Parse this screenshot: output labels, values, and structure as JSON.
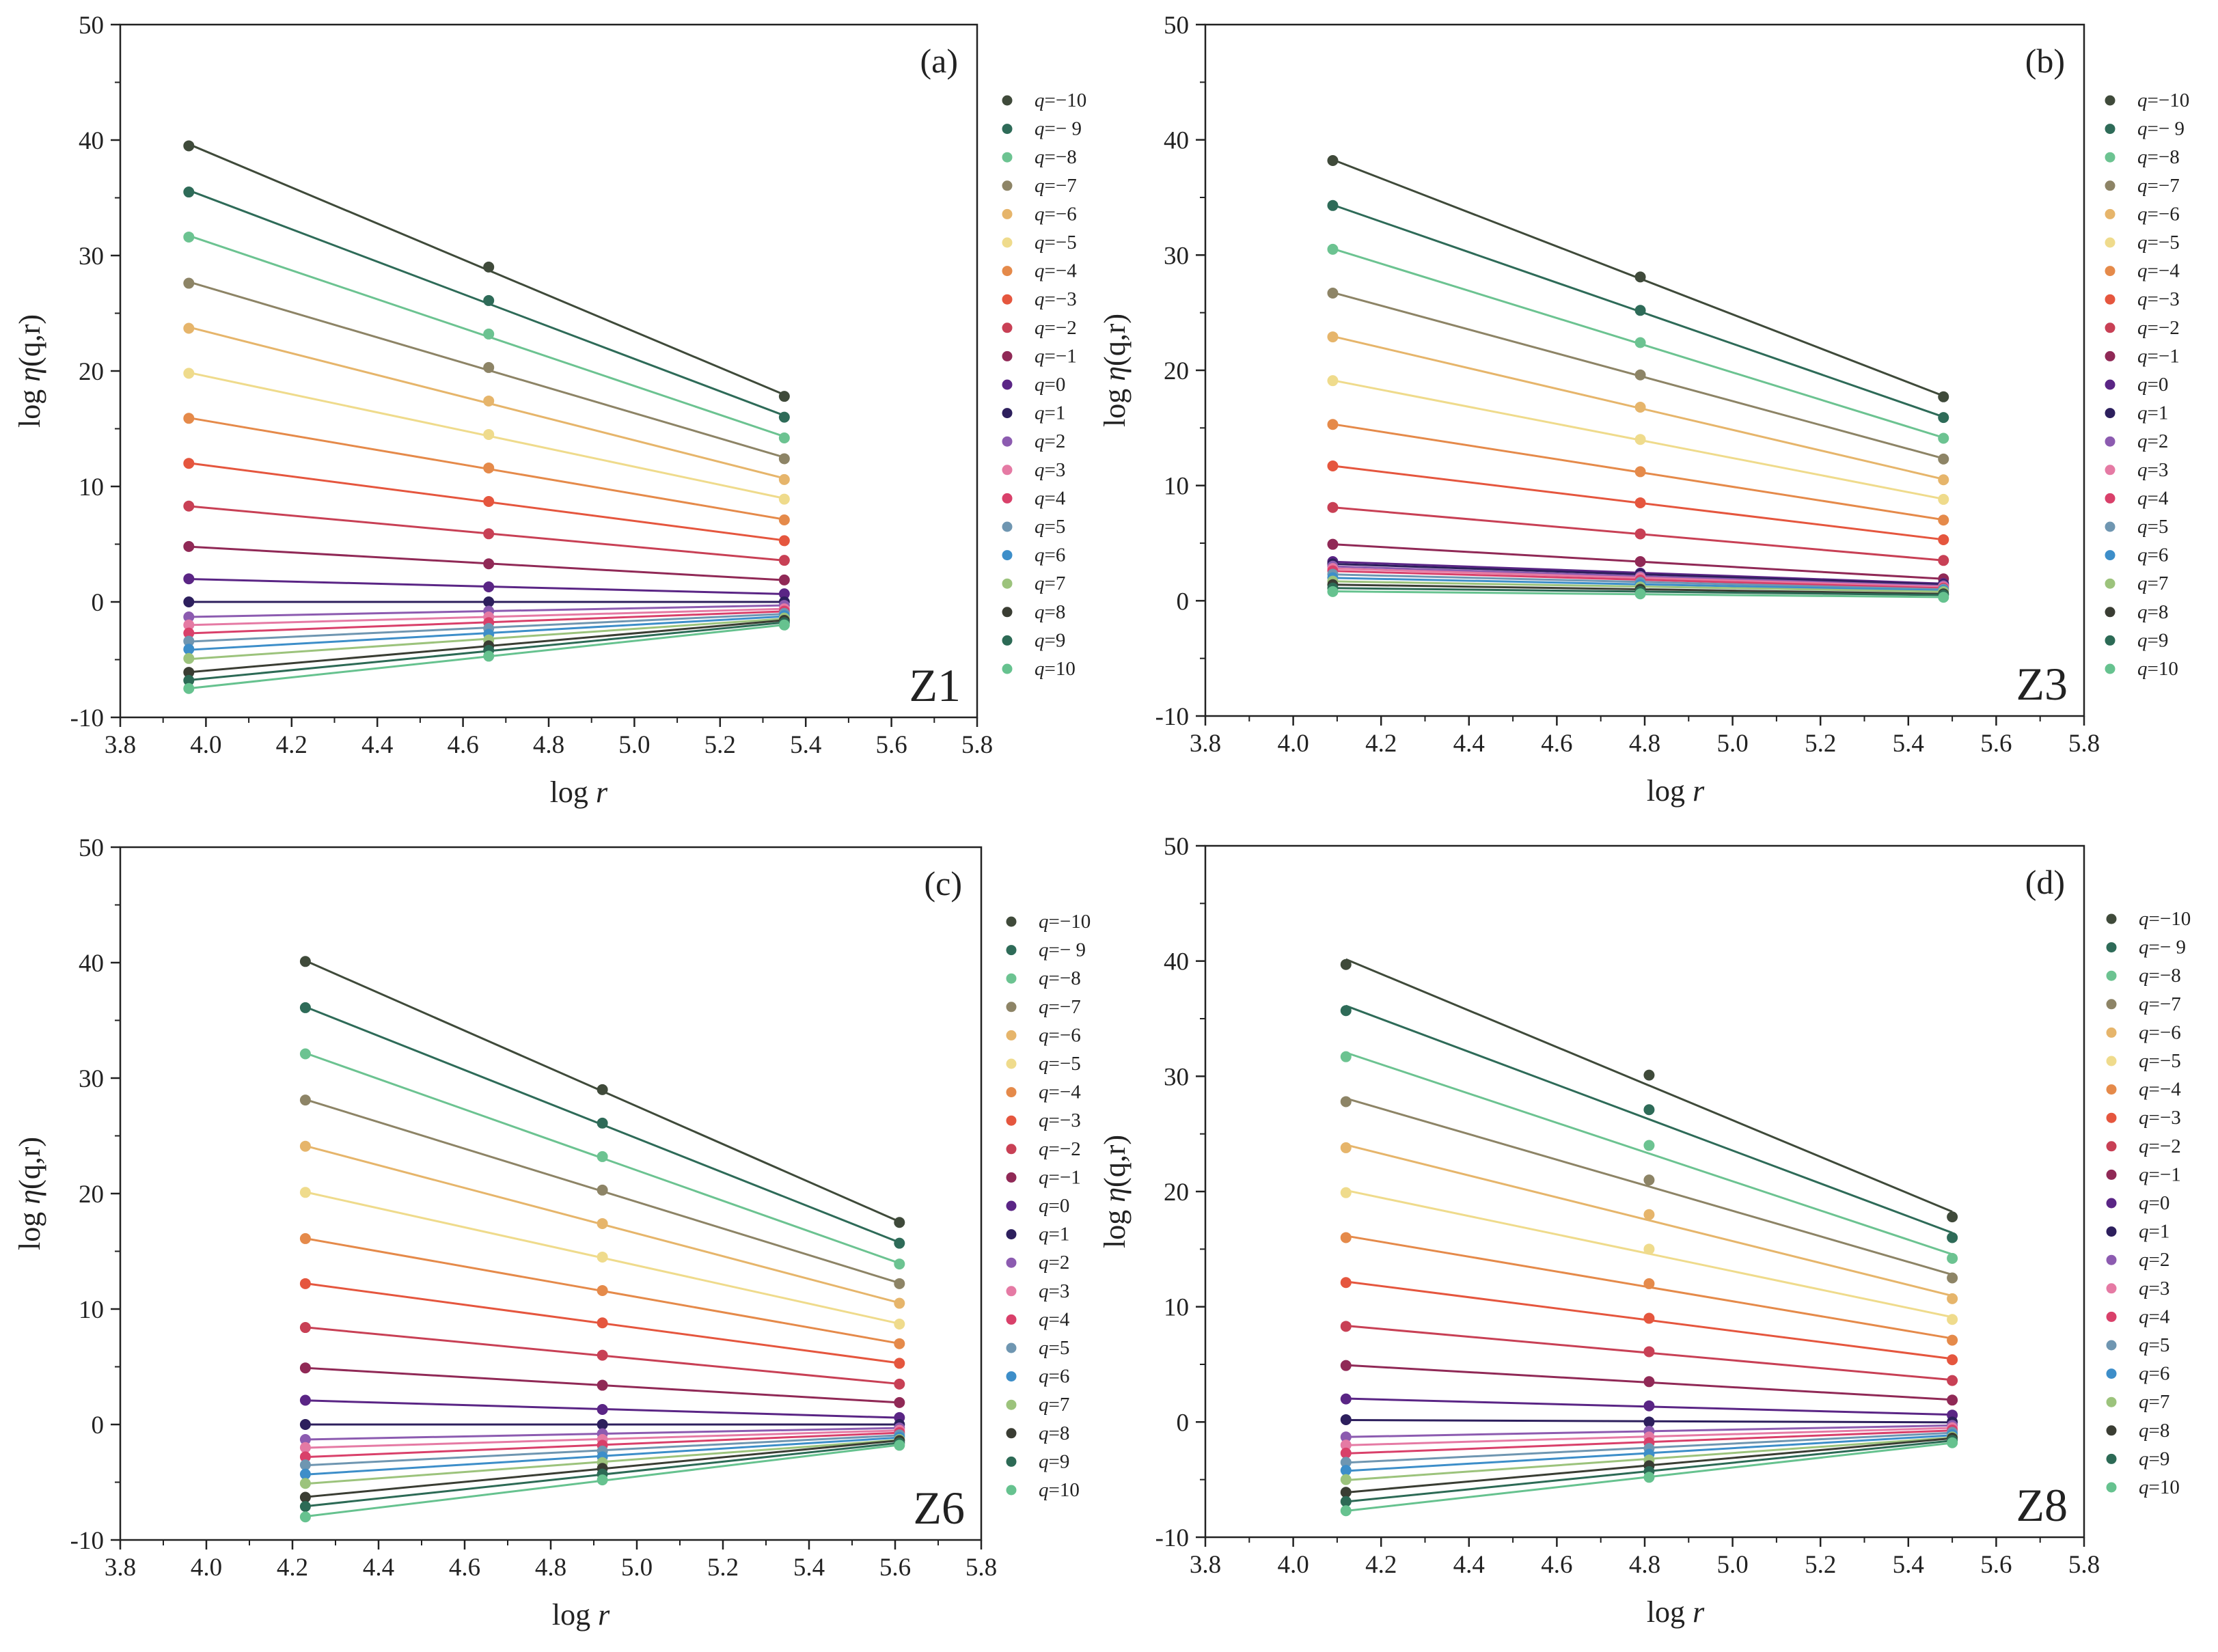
{
  "figure": {
    "description_free": true
  },
  "legend_q_labels": [
    "q=−10",
    "q=− 9",
    "q=−8",
    "q=−7",
    "q=−6",
    "q=−5",
    "q=−4",
    "q=−3",
    "q=−2",
    "q=−1",
    "q=0",
    "q=1",
    "q=2",
    "q=3",
    "q=4",
    "q=5",
    "q=6",
    "q=7",
    "q=8",
    "q=9",
    "q=10"
  ],
  "series_colors": [
    "#3f4a3a",
    "#2e6b58",
    "#6cc391",
    "#8d8466",
    "#e6b56b",
    "#efdb8c",
    "#e58a4a",
    "#e5563e",
    "#c84055",
    "#902956",
    "#5a2585",
    "#2d1f5d",
    "#8c5bb0",
    "#e57aa4",
    "#d9406a",
    "#6f96b1",
    "#3d8ec9",
    "#9cc37c",
    "#3a3d33",
    "#2c6a55",
    "#66c28f"
  ],
  "chart_data": [
    {
      "type": "scatter",
      "panel": "(a)",
      "zone": "Z1",
      "xlabel": "log r",
      "ylabel": "log η(q,r)",
      "xlim": [
        3.8,
        5.8
      ],
      "ylim": [
        -10,
        50
      ],
      "xticks": [
        "3.8",
        "4.0",
        "4.2",
        "4.4",
        "4.6",
        "4.8",
        "5.0",
        "5.2",
        "5.4",
        "5.6",
        "5.8"
      ],
      "yticks": [
        "-10",
        "0",
        "10",
        "20",
        "30",
        "40",
        "50"
      ],
      "x": [
        3.96,
        4.66,
        5.35
      ],
      "series": [
        {
          "name": "q=−10",
          "values": [
            39.5,
            29.0,
            17.8
          ]
        },
        {
          "name": "q=− 9",
          "values": [
            35.5,
            26.1,
            16.0
          ]
        },
        {
          "name": "q=−8",
          "values": [
            31.6,
            23.2,
            14.2
          ]
        },
        {
          "name": "q=−7",
          "values": [
            27.6,
            20.3,
            12.4
          ]
        },
        {
          "name": "q=−6",
          "values": [
            23.7,
            17.4,
            10.6
          ]
        },
        {
          "name": "q=−5",
          "values": [
            19.8,
            14.5,
            8.9
          ]
        },
        {
          "name": "q=−4",
          "values": [
            15.9,
            11.6,
            7.1
          ]
        },
        {
          "name": "q=−3",
          "values": [
            12.0,
            8.7,
            5.3
          ]
        },
        {
          "name": "q=−2",
          "values": [
            8.3,
            5.9,
            3.6
          ]
        },
        {
          "name": "q=−1",
          "values": [
            4.8,
            3.3,
            1.9
          ]
        },
        {
          "name": "q=0",
          "values": [
            2.0,
            1.3,
            0.7
          ]
        },
        {
          "name": "q=1",
          "values": [
            0.0,
            0.0,
            0.0
          ]
        },
        {
          "name": "q=2",
          "values": [
            -1.3,
            -0.8,
            -0.3
          ]
        },
        {
          "name": "q=3",
          "values": [
            -2.0,
            -1.3,
            -0.6
          ]
        },
        {
          "name": "q=4",
          "values": [
            -2.7,
            -1.8,
            -0.8
          ]
        },
        {
          "name": "q=5",
          "values": [
            -3.4,
            -2.3,
            -1.0
          ]
        },
        {
          "name": "q=6",
          "values": [
            -4.1,
            -2.8,
            -1.2
          ]
        },
        {
          "name": "q=7",
          "values": [
            -4.9,
            -3.3,
            -1.4
          ]
        },
        {
          "name": "q=8",
          "values": [
            -6.1,
            -3.8,
            -1.6
          ]
        },
        {
          "name": "q=9",
          "values": [
            -6.8,
            -4.2,
            -1.8
          ]
        },
        {
          "name": "q=10",
          "values": [
            -7.5,
            -4.7,
            -2.0
          ]
        }
      ]
    },
    {
      "type": "scatter",
      "panel": "(b)",
      "zone": "Z3",
      "xlabel": "log r",
      "ylabel": "log η(q,r)",
      "xlim": [
        3.8,
        5.8
      ],
      "ylim": [
        -10,
        50
      ],
      "xticks": [
        "3.8",
        "4.0",
        "4.2",
        "4.4",
        "4.6",
        "4.8",
        "5.0",
        "5.2",
        "5.4",
        "5.6",
        "5.8"
      ],
      "yticks": [
        "-10",
        "0",
        "10",
        "20",
        "30",
        "40",
        "50"
      ],
      "x": [
        4.09,
        4.79,
        5.48
      ],
      "series": [
        {
          "name": "q=−10",
          "values": [
            38.2,
            28.1,
            17.7
          ]
        },
        {
          "name": "q=− 9",
          "values": [
            34.3,
            25.2,
            15.9
          ]
        },
        {
          "name": "q=−8",
          "values": [
            30.5,
            22.4,
            14.1
          ]
        },
        {
          "name": "q=−7",
          "values": [
            26.7,
            19.6,
            12.3
          ]
        },
        {
          "name": "q=−6",
          "values": [
            22.9,
            16.8,
            10.5
          ]
        },
        {
          "name": "q=−5",
          "values": [
            19.1,
            14.0,
            8.8
          ]
        },
        {
          "name": "q=−4",
          "values": [
            15.3,
            11.2,
            7.0
          ]
        },
        {
          "name": "q=−3",
          "values": [
            11.7,
            8.5,
            5.3
          ]
        },
        {
          "name": "q=−2",
          "values": [
            8.1,
            5.8,
            3.5
          ]
        },
        {
          "name": "q=−1",
          "values": [
            4.9,
            3.4,
            1.9
          ]
        },
        {
          "name": "q=0",
          "values": [
            3.4,
            2.4,
            1.5
          ]
        },
        {
          "name": "q=1",
          "values": [
            3.2,
            2.3,
            1.4
          ]
        },
        {
          "name": "q=2",
          "values": [
            3.0,
            2.1,
            1.3
          ]
        },
        {
          "name": "q=3",
          "values": [
            2.8,
            2.0,
            1.2
          ]
        },
        {
          "name": "q=4",
          "values": [
            2.6,
            1.8,
            1.1
          ]
        },
        {
          "name": "q=5",
          "values": [
            2.3,
            1.6,
            1.0
          ]
        },
        {
          "name": "q=6",
          "values": [
            2.0,
            1.4,
            0.9
          ]
        },
        {
          "name": "q=7",
          "values": [
            1.7,
            1.2,
            0.8
          ]
        },
        {
          "name": "q=8",
          "values": [
            1.4,
            1.0,
            0.6
          ]
        },
        {
          "name": "q=9",
          "values": [
            1.1,
            0.8,
            0.5
          ]
        },
        {
          "name": "q=10",
          "values": [
            0.8,
            0.6,
            0.3
          ]
        }
      ]
    },
    {
      "type": "scatter",
      "panel": "(c)",
      "zone": "Z6",
      "xlabel": "log r",
      "ylabel": "log η(q,r)",
      "xlim": [
        3.8,
        5.8
      ],
      "ylim": [
        -10,
        50
      ],
      "xticks": [
        "3.8",
        "4.0",
        "4.2",
        "4.4",
        "4.6",
        "4.8",
        "5.0",
        "5.2",
        "5.4",
        "5.6",
        "5.8"
      ],
      "yticks": [
        "-10",
        "0",
        "10",
        "20",
        "30",
        "40",
        "50"
      ],
      "x": [
        4.23,
        4.92,
        5.61
      ],
      "series": [
        {
          "name": "q=−10",
          "values": [
            40.1,
            29.0,
            17.5
          ]
        },
        {
          "name": "q=− 9",
          "values": [
            36.1,
            26.1,
            15.7
          ]
        },
        {
          "name": "q=−8",
          "values": [
            32.1,
            23.2,
            13.9
          ]
        },
        {
          "name": "q=−7",
          "values": [
            28.1,
            20.3,
            12.2
          ]
        },
        {
          "name": "q=−6",
          "values": [
            24.1,
            17.4,
            10.5
          ]
        },
        {
          "name": "q=−5",
          "values": [
            20.1,
            14.5,
            8.7
          ]
        },
        {
          "name": "q=−4",
          "values": [
            16.1,
            11.6,
            7.0
          ]
        },
        {
          "name": "q=−3",
          "values": [
            12.2,
            8.8,
            5.3
          ]
        },
        {
          "name": "q=−2",
          "values": [
            8.4,
            6.0,
            3.5
          ]
        },
        {
          "name": "q=−1",
          "values": [
            4.9,
            3.4,
            1.9
          ]
        },
        {
          "name": "q=0",
          "values": [
            2.1,
            1.3,
            0.6
          ]
        },
        {
          "name": "q=1",
          "values": [
            0.0,
            0.0,
            0.0
          ]
        },
        {
          "name": "q=2",
          "values": [
            -1.3,
            -0.8,
            -0.3
          ]
        },
        {
          "name": "q=3",
          "values": [
            -2.0,
            -1.3,
            -0.5
          ]
        },
        {
          "name": "q=4",
          "values": [
            -2.8,
            -1.8,
            -0.7
          ]
        },
        {
          "name": "q=5",
          "values": [
            -3.5,
            -2.3,
            -0.9
          ]
        },
        {
          "name": "q=6",
          "values": [
            -4.3,
            -2.8,
            -1.1
          ]
        },
        {
          "name": "q=7",
          "values": [
            -5.1,
            -3.3,
            -1.3
          ]
        },
        {
          "name": "q=8",
          "values": [
            -6.3,
            -3.8,
            -1.4
          ]
        },
        {
          "name": "q=9",
          "values": [
            -7.1,
            -4.3,
            -1.6
          ]
        },
        {
          "name": "q=10",
          "values": [
            -8.0,
            -4.8,
            -1.8
          ]
        }
      ]
    },
    {
      "type": "scatter",
      "panel": "(d)",
      "zone": "Z8",
      "xlabel": "log r",
      "ylabel": "log η(q,r)",
      "xlim": [
        3.8,
        5.8
      ],
      "ylim": [
        -10,
        50
      ],
      "xticks": [
        "3.8",
        "4.0",
        "4.2",
        "4.4",
        "4.6",
        "4.8",
        "5.0",
        "5.2",
        "5.4",
        "5.6",
        "5.8"
      ],
      "yticks": [
        "-10",
        "0",
        "10",
        "20",
        "30",
        "40",
        "50"
      ],
      "x": [
        4.12,
        4.81,
        5.5
      ],
      "series": [
        {
          "name": "q=−10",
          "values": [
            39.7,
            30.1,
            17.8
          ]
        },
        {
          "name": "q=− 9",
          "values": [
            35.7,
            27.1,
            16.0
          ]
        },
        {
          "name": "q=−8",
          "values": [
            31.7,
            24.0,
            14.2
          ]
        },
        {
          "name": "q=−7",
          "values": [
            27.8,
            21.0,
            12.5
          ]
        },
        {
          "name": "q=−6",
          "values": [
            23.8,
            18.0,
            10.7
          ]
        },
        {
          "name": "q=−5",
          "values": [
            19.9,
            15.0,
            8.9
          ]
        },
        {
          "name": "q=−4",
          "values": [
            16.0,
            12.0,
            7.1
          ]
        },
        {
          "name": "q=−3",
          "values": [
            12.1,
            9.0,
            5.4
          ]
        },
        {
          "name": "q=−2",
          "values": [
            8.3,
            6.1,
            3.6
          ]
        },
        {
          "name": "q=−1",
          "values": [
            4.9,
            3.5,
            1.9
          ]
        },
        {
          "name": "q=0",
          "values": [
            2.0,
            1.4,
            0.6
          ]
        },
        {
          "name": "q=1",
          "values": [
            0.2,
            0.0,
            0.0
          ]
        },
        {
          "name": "q=2",
          "values": [
            -1.3,
            -0.8,
            -0.3
          ]
        },
        {
          "name": "q=3",
          "values": [
            -2.0,
            -1.3,
            -0.5
          ]
        },
        {
          "name": "q=4",
          "values": [
            -2.7,
            -1.8,
            -0.7
          ]
        },
        {
          "name": "q=5",
          "values": [
            -3.5,
            -2.3,
            -0.9
          ]
        },
        {
          "name": "q=6",
          "values": [
            -4.2,
            -2.8,
            -1.1
          ]
        },
        {
          "name": "q=7",
          "values": [
            -5.0,
            -3.3,
            -1.3
          ]
        },
        {
          "name": "q=8",
          "values": [
            -6.1,
            -3.8,
            -1.4
          ]
        },
        {
          "name": "q=9",
          "values": [
            -6.9,
            -4.3,
            -1.6
          ]
        },
        {
          "name": "q=10",
          "values": [
            -7.7,
            -4.8,
            -1.8
          ]
        }
      ]
    }
  ]
}
